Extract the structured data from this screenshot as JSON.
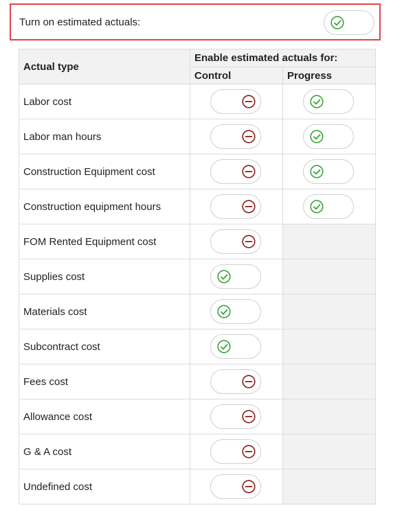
{
  "master": {
    "label": "Turn on estimated actuals:",
    "enabled": true
  },
  "table": {
    "col_actual_type": "Actual type",
    "col_enable_group": "Enable estimated actuals for:",
    "col_control": "Control",
    "col_progress": "Progress",
    "rows": [
      {
        "name": "Labor cost",
        "control": "off",
        "progress": "on"
      },
      {
        "name": "Labor man hours",
        "control": "off",
        "progress": "on"
      },
      {
        "name": "Construction Equipment cost",
        "control": "off",
        "progress": "on"
      },
      {
        "name": "Construction equipment hours",
        "control": "off",
        "progress": "on"
      },
      {
        "name": "FOM Rented Equipment cost",
        "control": "off",
        "progress": null
      },
      {
        "name": "Supplies cost",
        "control": "on",
        "progress": null
      },
      {
        "name": "Materials cost",
        "control": "on",
        "progress": null
      },
      {
        "name": "Subcontract cost",
        "control": "on",
        "progress": null
      },
      {
        "name": "Fees cost",
        "control": "off",
        "progress": null
      },
      {
        "name": "Allowance cost",
        "control": "off",
        "progress": null
      },
      {
        "name": "G & A cost",
        "control": "off",
        "progress": null
      },
      {
        "name": "Undefined cost",
        "control": "off",
        "progress": null
      }
    ]
  },
  "icons": {
    "on": "check-circle-icon",
    "off": "minus-circle-icon"
  },
  "colors": {
    "on": "#3aa33a",
    "off": "#8b1a1a",
    "highlight_border": "#e0434a"
  }
}
